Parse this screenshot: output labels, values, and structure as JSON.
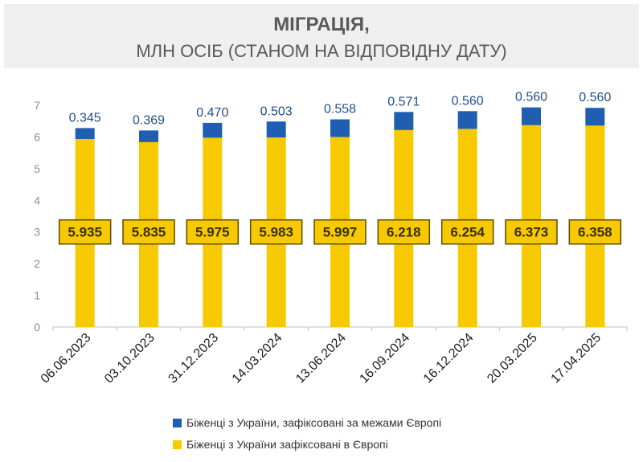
{
  "chart_data": {
    "type": "bar",
    "stacked": true,
    "title": "МІГРАЦІЯ,",
    "subtitle": "МЛН ОСІБ (СТАНОМ НА ВІДПОВІДНУ ДАТУ)",
    "categories": [
      "06.06.2023",
      "03.10.2023",
      "31.12.2023",
      "14.03.2024",
      "13.06.2024",
      "16.09.2024",
      "16.12.2024",
      "20.03.2025",
      "17.04.2025"
    ],
    "series": [
      {
        "name": "Біженці з України зафіксовані в Європі",
        "color": "#f6c900",
        "values": [
          5.935,
          5.835,
          5.975,
          5.983,
          5.997,
          6.218,
          6.254,
          6.373,
          6.358
        ],
        "labels": [
          "5.935",
          "5.835",
          "5.975",
          "5.983",
          "5.997",
          "6.218",
          "6.254",
          "6.373",
          "6.358"
        ]
      },
      {
        "name": "Біженці з України, зафіксовані за межами Європі",
        "color": "#1f5eb0",
        "values": [
          0.345,
          0.369,
          0.47,
          0.503,
          0.558,
          0.571,
          0.56,
          0.56,
          0.56
        ],
        "labels": [
          "0.345",
          "0.369",
          "0.470",
          "0.503",
          "0.558",
          "0.571",
          "0.560",
          "0.560",
          "0.560"
        ]
      }
    ],
    "ylim": [
      0,
      7
    ],
    "yticks": [
      "0",
      "1",
      "2",
      "3",
      "4",
      "5",
      "6",
      "7"
    ],
    "grid": false,
    "legend_position": "bottom"
  },
  "colors": {
    "europe": "#f6c900",
    "outside": "#1f5eb0",
    "label_box_border": "#5a4a00",
    "outside_label": "#1f4e8c"
  }
}
